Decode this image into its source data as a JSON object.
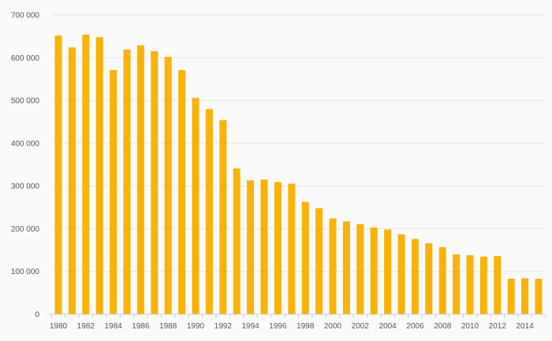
{
  "chart_data": {
    "type": "bar",
    "categories": [
      "1980",
      "1981",
      "1982",
      "1983",
      "1984",
      "1985",
      "1986",
      "1987",
      "1988",
      "1989",
      "1990",
      "1991",
      "1992",
      "1993",
      "1994",
      "1995",
      "1996",
      "1997",
      "1998",
      "1999",
      "2000",
      "2001",
      "2002",
      "2003",
      "2004",
      "2005",
      "2006",
      "2007",
      "2008",
      "2009",
      "2010",
      "2011",
      "2012",
      "2013",
      "2014",
      "2015"
    ],
    "series": [
      {
        "values": [
          652000,
          624000,
          654000,
          648000,
          571000,
          619000,
          629000,
          615000,
          602000,
          571000,
          506000,
          480000,
          454000,
          341000,
          313000,
          315000,
          309000,
          305000,
          263000,
          248000,
          224000,
          217000,
          211000,
          203000,
          198000,
          187000,
          176000,
          166000,
          157000,
          140000,
          138000,
          135000,
          136000,
          83000,
          84000,
          83000
        ],
        "color": "#f9b208"
      }
    ],
    "ylim": [
      0,
      700000
    ],
    "yticks": [
      0,
      100000,
      200000,
      300000,
      400000,
      500000,
      600000,
      700000
    ],
    "ytick_labels": [
      "0",
      "100 000",
      "200 000",
      "300 000",
      "400 000",
      "500 000",
      "600 000",
      "700 000"
    ],
    "xtick_labels": [
      "1980",
      "1982",
      "1984",
      "1986",
      "1988",
      "1990",
      "1992",
      "1994",
      "1996",
      "1998",
      "2000",
      "2002",
      "2004",
      "2006",
      "2008",
      "2010",
      "2012",
      "2014"
    ],
    "grid": true,
    "colors": {
      "bar": "#f9b208",
      "grid": "#e6e6e6",
      "background": "#fafafa"
    }
  }
}
